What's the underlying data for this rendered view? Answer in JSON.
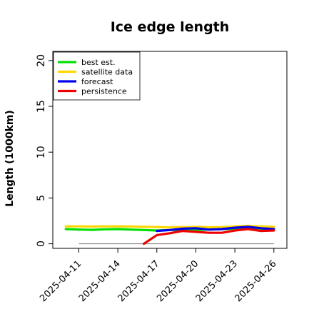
{
  "chart_data": {
    "type": "line",
    "title": "Ice edge length",
    "ylabel": "Length (1000km)",
    "xlabel": "",
    "ylim": [
      -0.5,
      21
    ],
    "yticks": [
      0,
      5,
      10,
      15,
      20
    ],
    "xlim": [
      "2025-04-09",
      "2025-04-27"
    ],
    "xticks": [
      "2025-04-11",
      "2025-04-14",
      "2025-04-17",
      "2025-04-20",
      "2025-04-23",
      "2025-04-26"
    ],
    "highlight_tick": "2025-04-17",
    "highlight_color": "#228b22",
    "legend_position": "top-left",
    "grid": false,
    "baseline": {
      "y": 0,
      "from": "2025-04-11",
      "to": "2025-04-26",
      "color": "#888888"
    },
    "series": [
      {
        "name": "best est.",
        "color": "#00e000",
        "points": [
          [
            "2025-04-10",
            1.6
          ],
          [
            "2025-04-11",
            1.55
          ],
          [
            "2025-04-12",
            1.52
          ],
          [
            "2025-04-13",
            1.58
          ],
          [
            "2025-04-14",
            1.6
          ],
          [
            "2025-04-15",
            1.55
          ],
          [
            "2025-04-16",
            1.5
          ],
          [
            "2025-04-17",
            1.45
          ],
          [
            "2025-04-18",
            1.5
          ],
          [
            "2025-04-19",
            1.52
          ],
          [
            "2025-04-20",
            1.5
          ],
          [
            "2025-04-21",
            1.55
          ],
          [
            "2025-04-22",
            1.6
          ],
          [
            "2025-04-23",
            1.65
          ],
          [
            "2025-04-24",
            1.75
          ],
          [
            "2025-04-25",
            1.65
          ],
          [
            "2025-04-26",
            1.6
          ]
        ]
      },
      {
        "name": "satellite data",
        "color": "#ffd700",
        "points": [
          [
            "2025-04-10",
            1.9
          ],
          [
            "2025-04-11",
            1.9
          ],
          [
            "2025-04-12",
            1.88
          ],
          [
            "2025-04-13",
            1.9
          ],
          [
            "2025-04-14",
            1.9
          ],
          [
            "2025-04-15",
            1.88
          ],
          [
            "2025-04-16",
            1.85
          ],
          [
            "2025-04-17",
            1.82
          ],
          [
            "2025-04-18",
            1.8
          ],
          [
            "2025-04-19",
            1.82
          ],
          [
            "2025-04-20",
            1.85
          ],
          [
            "2025-04-21",
            1.8
          ],
          [
            "2025-04-22",
            1.82
          ],
          [
            "2025-04-23",
            1.9
          ],
          [
            "2025-04-24",
            1.95
          ],
          [
            "2025-04-25",
            1.9
          ],
          [
            "2025-04-26",
            1.85
          ]
        ]
      },
      {
        "name": "forecast",
        "color": "#0000ee",
        "points": [
          [
            "2025-04-17",
            1.4
          ],
          [
            "2025-04-18",
            1.5
          ],
          [
            "2025-04-19",
            1.65
          ],
          [
            "2025-04-20",
            1.7
          ],
          [
            "2025-04-21",
            1.55
          ],
          [
            "2025-04-22",
            1.6
          ],
          [
            "2025-04-23",
            1.75
          ],
          [
            "2025-04-24",
            1.85
          ],
          [
            "2025-04-25",
            1.7
          ],
          [
            "2025-04-26",
            1.6
          ]
        ]
      },
      {
        "name": "persistence",
        "color": "#ee0000",
        "points": [
          [
            "2025-04-16",
            0.0
          ],
          [
            "2025-04-17",
            0.95
          ],
          [
            "2025-04-18",
            1.15
          ],
          [
            "2025-04-19",
            1.4
          ],
          [
            "2025-04-20",
            1.3
          ],
          [
            "2025-04-21",
            1.2
          ],
          [
            "2025-04-22",
            1.2
          ],
          [
            "2025-04-23",
            1.45
          ],
          [
            "2025-04-24",
            1.6
          ],
          [
            "2025-04-25",
            1.4
          ],
          [
            "2025-04-26",
            1.45
          ]
        ]
      }
    ]
  }
}
